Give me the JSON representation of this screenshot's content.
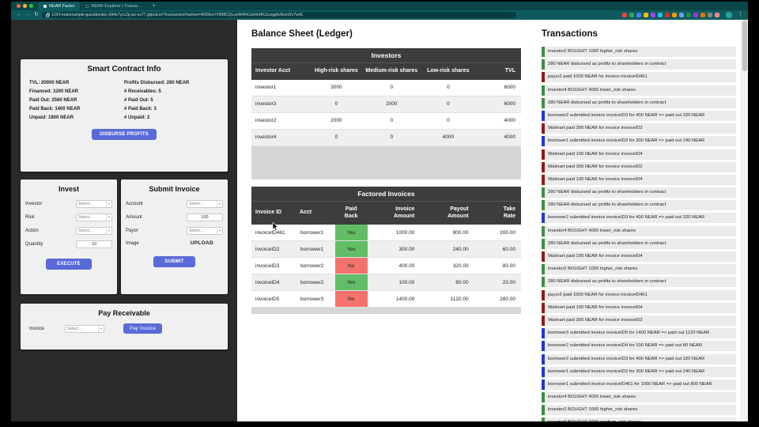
{
  "chrome": {
    "tabs": [
      {
        "label": "NEAR Factor"
      },
      {
        "label": "NEAR Explorer | Transaction..."
      }
    ],
    "url": "1234-nearexample-guestbookjs-v0l4e7ycc2p.ws-us77.gitpod.io/?transactionHashes=4RD8vnTH8MCQLuvWrB4cLbl4oHKZcoqgAoNxmSV7w4L",
    "extension_icons": [
      "#e8453c",
      "#34a853",
      "#4285f4",
      "#fbbc05",
      "#a142f4",
      "#24c1e0",
      "#d93025",
      "#f29900",
      "#669df6",
      "#1e8e3e",
      "#9334e6",
      "#e37400",
      "#80868b",
      "#f28b82"
    ]
  },
  "colors": {
    "accent_button": "#5a6ad8",
    "chrome_teal": "#0e5b5f",
    "tx_green": "#3e8e41",
    "tx_blue": "#2438c9",
    "tx_red": "#8e1b1b",
    "paid_yes": "#61bd66",
    "paid_no": "#f4726d"
  },
  "contract_info": {
    "title": "Smart Contract Info",
    "left_stats": [
      "TVL: 20000 NEAR",
      "Financed: 3200 NEAR",
      "Paid Out: 2560 NEAR",
      "Paid Back: 1400 NEAR",
      "Unpaid: 1800 NEAR"
    ],
    "right_stats": [
      "Profits Disbursed: 280 NEAR",
      "# Receivables: 5",
      "# Paid Out: 5",
      "# Paid Back: 3",
      "# Unpaid: 2"
    ],
    "button": "DISBURSE PROFITS"
  },
  "invest": {
    "title": "Invest",
    "fields": [
      {
        "label": "Investor",
        "type": "select",
        "value": "Select..."
      },
      {
        "label": "Risk",
        "type": "select",
        "value": "Select..."
      },
      {
        "label": "Action",
        "type": "select",
        "value": "Select..."
      },
      {
        "label": "Quantity",
        "type": "input",
        "value": "10"
      }
    ],
    "button": "EXECUTE"
  },
  "submit_invoice": {
    "title": "Submit Invoice",
    "fields": [
      {
        "label": "Account",
        "type": "select",
        "value": "Select..."
      },
      {
        "label": "Amount",
        "type": "input",
        "value": "100"
      },
      {
        "label": "Payor",
        "type": "select",
        "value": "Select..."
      },
      {
        "label": "Image",
        "type": "upload",
        "value": "UPLOAD"
      }
    ],
    "button": "SUBMIT"
  },
  "pay_receivable": {
    "title": "Pay Receivable",
    "field_label": "Invoice",
    "select_value": "Select...",
    "button": "Pay Invoice"
  },
  "ledger": {
    "title": "Balance Sheet (Ledger)",
    "investors": {
      "title": "Investors",
      "columns": [
        "Investor Acct",
        "High-risk shares",
        "Medium-risk shares",
        "Low-risk shares",
        "TVL"
      ],
      "rows": [
        [
          "investor1",
          "3000",
          "0",
          "0",
          "6000"
        ],
        [
          "investor3",
          "0",
          "2000",
          "0",
          "6000"
        ],
        [
          "investor2",
          "2000",
          "0",
          "0",
          "4000"
        ],
        [
          "investor4",
          "0",
          "0",
          "4000",
          "4000"
        ]
      ]
    },
    "invoices": {
      "title": "Factored Invoices",
      "columns": [
        "Invoice ID",
        "Acct",
        "Paid Back",
        "Invoice Amount",
        "Payout Amount",
        "Take Rate"
      ],
      "rows": [
        [
          "invoiceID461",
          "borrower1",
          "Yes",
          "1000.00",
          "800.00",
          "200.00"
        ],
        [
          "invoiceID2",
          "borrower1",
          "Yes",
          "300.00",
          "240.00",
          "60.00"
        ],
        [
          "invoiceID3",
          "borrower2",
          "No",
          "400.00",
          "320.00",
          "80.00"
        ],
        [
          "invoiceID4",
          "borrower2",
          "Yes",
          "100.00",
          "80.00",
          "20.00"
        ],
        [
          "invoiceID5",
          "borrower3",
          "No",
          "1400.00",
          "1120.00",
          "280.00"
        ]
      ]
    }
  },
  "transactions": {
    "title": "Transactions",
    "items": [
      {
        "text": "investor2 BOUGHT 1000 higher_risk shares",
        "color": "green"
      },
      {
        "text": "280 NEAR disbursed as profits to shareholders in contract",
        "color": "green"
      },
      {
        "text": "payor2 paid 1000 NEAR for invoice invoiceID461",
        "color": "red"
      },
      {
        "text": "investor4 BOUGHT 4000 lower_risk shares",
        "color": "green"
      },
      {
        "text": "280 NEAR disbursed as profits to shareholders in contract",
        "color": "green"
      },
      {
        "text": "borrower2 submitted invoice invoiceID3 for 400 NEAR => paid out 320 NEAR",
        "color": "blue"
      },
      {
        "text": "Walmart paid 300 NEAR for invoice invoiceID2",
        "color": "red"
      },
      {
        "text": "borrower1 submitted invoice invoiceID2 for 300 NEAR => paid out 240 NEAR",
        "color": "blue"
      },
      {
        "text": "Walmart paid 100 NEAR for invoice invoiceID4",
        "color": "red"
      },
      {
        "text": "Walmart paid 300 NEAR for invoice invoiceID2",
        "color": "red"
      },
      {
        "text": "Walmart paid 100 NEAR for invoice invoiceID4",
        "color": "red"
      },
      {
        "text": "280 NEAR disbursed as profits to shareholders in contract",
        "color": "green"
      },
      {
        "text": "280 NEAR disbursed as profits to shareholders in contract",
        "color": "green"
      },
      {
        "text": "borrower2 submitted invoice invoiceID3 for 400 NEAR => paid out 320 NEAR",
        "color": "blue"
      },
      {
        "text": "investor4 BOUGHT 4000 lower_risk shares",
        "color": "green"
      },
      {
        "text": "280 NEAR disbursed as profits to shareholders in contract",
        "color": "green"
      },
      {
        "text": "Walmart paid 100 NEAR for invoice invoiceID4",
        "color": "red"
      },
      {
        "text": "investor2 BOUGHT 1000 higher_risk shares",
        "color": "green"
      },
      {
        "text": "280 NEAR disbursed as profits to shareholders in contract",
        "color": "green"
      },
      {
        "text": "payor2 paid 1000 NEAR for invoice invoiceID461",
        "color": "red"
      },
      {
        "text": "Walmart paid 100 NEAR for invoice invoiceID4",
        "color": "red"
      },
      {
        "text": "Walmart paid 300 NEAR for invoice invoiceID2",
        "color": "red"
      },
      {
        "text": "borrower3 submitted invoice invoiceID5 for 1400 NEAR => paid out 1120 NEAR",
        "color": "blue"
      },
      {
        "text": "borrower2 submitted invoice invoiceID4 for 100 NEAR => paid out 80 NEAR",
        "color": "blue"
      },
      {
        "text": "borrower2 submitted invoice invoiceID3 for 400 NEAR => paid out 320 NEAR",
        "color": "blue"
      },
      {
        "text": "borrower1 submitted invoice invoiceID2 for 300 NEAR => paid out 240 NEAR",
        "color": "blue"
      },
      {
        "text": "borrower1 submitted invoice invoiceID461 for 1000 NEAR => paid out 800 NEAR",
        "color": "blue"
      },
      {
        "text": "investor4 BOUGHT 4000 lower_risk shares",
        "color": "green"
      },
      {
        "text": "investor2 BOUGHT 1000 higher_risk shares",
        "color": "green"
      },
      {
        "text": "investor3 BOUGHT 2000 medium_risk shares",
        "color": "green"
      }
    ]
  }
}
